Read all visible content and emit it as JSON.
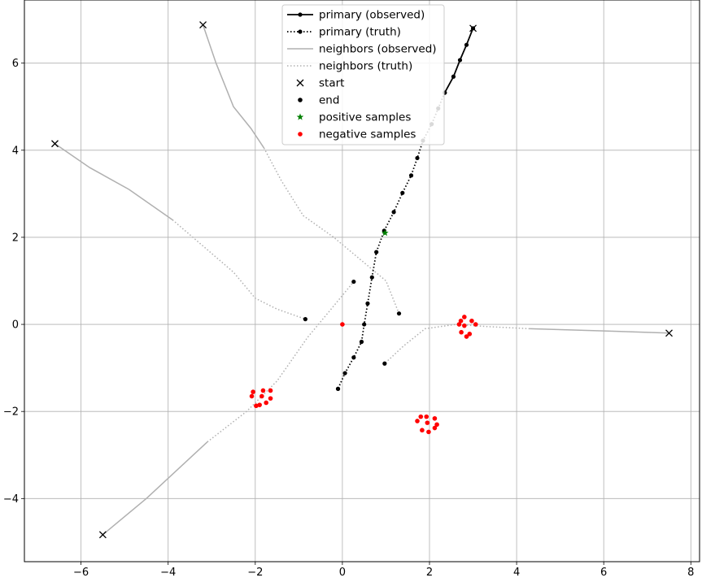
{
  "chart_data": {
    "type": "line",
    "title": "",
    "xlabel": "",
    "ylabel": "",
    "xlim": [
      -7.3,
      8.2
    ],
    "ylim": [
      -5.45,
      7.45
    ],
    "x_ticks": [
      -6,
      -4,
      -2,
      0,
      2,
      4,
      6,
      8
    ],
    "y_ticks": [
      -4,
      -2,
      0,
      2,
      4,
      6
    ],
    "grid": true,
    "legend": {
      "placement": "top-center",
      "entries": [
        {
          "label": "primary (observed)",
          "kind": "solid-dot",
          "color": "#000000"
        },
        {
          "label": "primary (truth)",
          "kind": "dotted-dot",
          "color": "#000000"
        },
        {
          "label": "neighbors (observed)",
          "kind": "solid",
          "color": "#b0b0b0"
        },
        {
          "label": "neighbors (truth)",
          "kind": "dotted",
          "color": "#b0b0b0"
        },
        {
          "label": "start",
          "kind": "x",
          "color": "#000000"
        },
        {
          "label": "end",
          "kind": "dot",
          "color": "#000000"
        },
        {
          "label": "positive samples",
          "kind": "star",
          "color": "#008000"
        },
        {
          "label": "negative samples",
          "kind": "dot",
          "color": "#ff0000"
        }
      ]
    },
    "colors": {
      "primary": "#000000",
      "neighbors": "#b0b0b0",
      "positive": "#008000",
      "negative": "#ff0000",
      "grid": "#b0b0b0"
    },
    "primary_observed": [
      [
        3.0,
        6.8
      ],
      [
        2.85,
        6.42
      ],
      [
        2.7,
        6.07
      ],
      [
        2.55,
        5.69
      ],
      [
        2.35,
        5.32
      ]
    ],
    "primary_truth": [
      [
        2.35,
        5.32
      ],
      [
        2.2,
        4.96
      ],
      [
        2.05,
        4.6
      ],
      [
        1.85,
        4.22
      ],
      [
        1.72,
        3.82
      ],
      [
        1.58,
        3.42
      ],
      [
        1.38,
        3.02
      ],
      [
        1.18,
        2.58
      ],
      [
        0.96,
        2.15
      ],
      [
        0.78,
        1.66
      ],
      [
        0.68,
        1.08
      ],
      [
        0.58,
        0.48
      ],
      [
        0.5,
        0.0
      ],
      [
        0.44,
        -0.4
      ],
      [
        0.26,
        -0.76
      ],
      [
        0.06,
        -1.12
      ],
      [
        -0.1,
        -1.48
      ]
    ],
    "neighbors": [
      {
        "observed": [
          [
            -3.2,
            6.88
          ],
          [
            -2.9,
            6.0
          ],
          [
            -2.5,
            5.0
          ],
          [
            -2.1,
            4.5
          ],
          [
            -1.8,
            4.05
          ]
        ],
        "truth": [
          [
            -1.8,
            4.05
          ],
          [
            -1.4,
            3.3
          ],
          [
            -0.9,
            2.5
          ],
          [
            -0.2,
            2.0
          ],
          [
            0.4,
            1.5
          ],
          [
            1.0,
            1.0
          ],
          [
            1.3,
            0.25
          ]
        ]
      },
      {
        "observed": [
          [
            -6.6,
            4.15
          ],
          [
            -5.8,
            3.6
          ],
          [
            -4.9,
            3.1
          ],
          [
            -3.9,
            2.4
          ]
        ],
        "truth": [
          [
            -3.9,
            2.4
          ],
          [
            -3.2,
            1.8
          ],
          [
            -2.5,
            1.2
          ],
          [
            -2.0,
            0.6
          ],
          [
            -1.5,
            0.35
          ],
          [
            -0.85,
            0.12
          ]
        ]
      },
      {
        "observed": [
          [
            -5.5,
            -4.83
          ],
          [
            -4.5,
            -4.0
          ],
          [
            -3.1,
            -2.7
          ]
        ],
        "truth": [
          [
            -3.1,
            -2.7
          ],
          [
            -2.2,
            -2.0
          ],
          [
            -1.5,
            -1.3
          ],
          [
            -0.8,
            -0.3
          ],
          [
            -0.3,
            0.3
          ],
          [
            0.26,
            0.98
          ]
        ]
      },
      {
        "observed": [
          [
            7.5,
            -0.2
          ],
          [
            6.0,
            -0.15
          ],
          [
            4.3,
            -0.1
          ]
        ],
        "truth": [
          [
            4.3,
            -0.1
          ],
          [
            3.3,
            -0.05
          ],
          [
            2.6,
            0.0
          ],
          [
            1.9,
            -0.1
          ],
          [
            1.4,
            -0.5
          ],
          [
            0.97,
            -0.9
          ]
        ]
      }
    ],
    "start_points": [
      [
        3.0,
        6.8
      ],
      [
        -3.2,
        6.88
      ],
      [
        -6.6,
        4.15
      ],
      [
        -5.5,
        -4.83
      ],
      [
        7.5,
        -0.2
      ]
    ],
    "end_points": [
      [
        -0.1,
        -1.48
      ],
      [
        1.3,
        0.25
      ],
      [
        -0.85,
        0.12
      ],
      [
        0.26,
        0.98
      ],
      [
        0.97,
        -0.9
      ]
    ],
    "positive_samples": [
      [
        0.98,
        2.1
      ]
    ],
    "negative_samples": [
      [
        0.0,
        0.0
      ],
      [
        -2.05,
        -1.55
      ],
      [
        -1.82,
        -1.52
      ],
      [
        -1.65,
        -1.52
      ],
      [
        -2.08,
        -1.65
      ],
      [
        -1.85,
        -1.65
      ],
      [
        -1.65,
        -1.7
      ],
      [
        -1.75,
        -1.8
      ],
      [
        -1.9,
        -1.85
      ],
      [
        -1.98,
        -1.87
      ],
      [
        1.8,
        -2.12
      ],
      [
        1.93,
        -2.12
      ],
      [
        2.12,
        -2.16
      ],
      [
        1.72,
        -2.22
      ],
      [
        1.95,
        -2.26
      ],
      [
        2.17,
        -2.3
      ],
      [
        2.12,
        -2.38
      ],
      [
        1.83,
        -2.43
      ],
      [
        1.98,
        -2.47
      ],
      [
        2.8,
        0.17
      ],
      [
        2.72,
        0.08
      ],
      [
        2.97,
        0.08
      ],
      [
        2.68,
        0.0
      ],
      [
        2.8,
        -0.03
      ],
      [
        3.06,
        0.0
      ],
      [
        2.73,
        -0.18
      ],
      [
        2.92,
        -0.22
      ],
      [
        2.85,
        -0.28
      ]
    ]
  }
}
